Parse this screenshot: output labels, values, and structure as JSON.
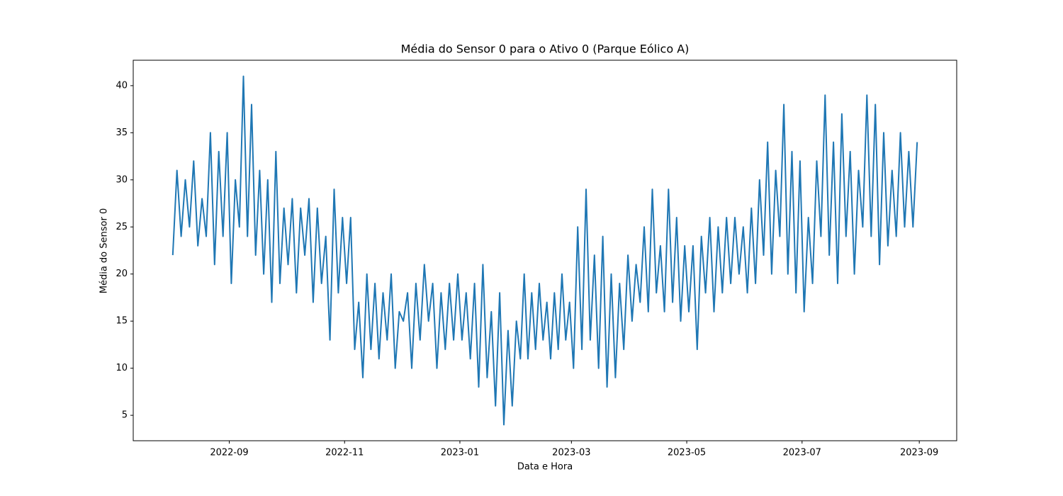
{
  "chart_data": {
    "type": "line",
    "title": "Média do Sensor 0 para o Ativo 0 (Parque Eólico A)",
    "xlabel": "Data e Hora",
    "ylabel": "Média do Sensor 0",
    "color": "#1f77b4",
    "x": [
      "2022-08",
      "2022-08",
      "2022-08",
      "2022-08",
      "2022-08",
      "2022-08",
      "2022-08",
      "2022-08",
      "2022-08",
      "2022-08",
      "2022-08",
      "2022-08",
      "2022-08",
      "2022-08",
      "2022-09",
      "2022-09",
      "2022-09",
      "2022-09",
      "2022-09",
      "2022-09",
      "2022-09",
      "2022-09",
      "2022-09",
      "2022-09",
      "2022-09",
      "2022-09",
      "2022-09",
      "2022-09",
      "2022-10",
      "2022-10",
      "2022-10",
      "2022-10",
      "2022-10",
      "2022-10",
      "2022-10",
      "2022-10",
      "2022-10",
      "2022-10",
      "2022-10",
      "2022-10",
      "2022-10",
      "2022-10",
      "2022-11",
      "2022-11",
      "2022-11",
      "2022-11",
      "2022-11",
      "2022-11",
      "2022-11",
      "2022-11",
      "2022-11",
      "2022-11",
      "2022-11",
      "2022-11",
      "2022-11",
      "2022-11",
      "2022-12",
      "2022-12",
      "2022-12",
      "2022-12",
      "2022-12",
      "2022-12",
      "2022-12",
      "2022-12",
      "2022-12",
      "2022-12",
      "2022-12",
      "2022-12",
      "2022-12",
      "2022-12",
      "2023-01",
      "2023-01",
      "2023-01",
      "2023-01",
      "2023-01",
      "2023-01",
      "2023-01",
      "2023-01",
      "2023-01",
      "2023-01",
      "2023-01",
      "2023-01",
      "2023-01",
      "2023-01",
      "2023-02",
      "2023-02",
      "2023-02",
      "2023-02",
      "2023-02",
      "2023-02",
      "2023-02",
      "2023-02",
      "2023-02",
      "2023-02",
      "2023-02",
      "2023-02",
      "2023-02",
      "2023-02",
      "2023-03",
      "2023-03",
      "2023-03",
      "2023-03",
      "2023-03",
      "2023-03",
      "2023-03",
      "2023-03",
      "2023-03",
      "2023-03",
      "2023-03",
      "2023-03",
      "2023-03",
      "2023-03",
      "2023-04",
      "2023-04",
      "2023-04",
      "2023-04",
      "2023-04",
      "2023-04",
      "2023-04",
      "2023-04",
      "2023-04",
      "2023-04",
      "2023-04",
      "2023-04",
      "2023-04",
      "2023-04",
      "2023-05",
      "2023-05",
      "2023-05",
      "2023-05",
      "2023-05",
      "2023-05",
      "2023-05",
      "2023-05",
      "2023-05",
      "2023-05",
      "2023-05",
      "2023-05",
      "2023-05",
      "2023-05",
      "2023-06",
      "2023-06",
      "2023-06",
      "2023-06",
      "2023-06",
      "2023-06",
      "2023-06",
      "2023-06",
      "2023-06",
      "2023-06",
      "2023-06",
      "2023-06",
      "2023-06",
      "2023-06",
      "2023-07",
      "2023-07",
      "2023-07",
      "2023-07",
      "2023-07",
      "2023-07",
      "2023-07",
      "2023-07",
      "2023-07",
      "2023-07",
      "2023-07",
      "2023-07",
      "2023-07",
      "2023-07",
      "2023-08",
      "2023-08",
      "2023-08",
      "2023-08",
      "2023-08",
      "2023-08",
      "2023-08",
      "2023-08",
      "2023-08",
      "2023-08",
      "2023-08",
      "2023-08",
      "2023-08",
      "2023-08"
    ],
    "values": [
      22,
      31,
      24,
      30,
      25,
      32,
      23,
      28,
      24,
      35,
      21,
      33,
      24,
      35,
      19,
      30,
      25,
      41,
      24,
      38,
      22,
      31,
      20,
      30,
      17,
      33,
      19,
      27,
      21,
      28,
      18,
      27,
      22,
      28,
      17,
      27,
      19,
      24,
      13,
      29,
      18,
      26,
      19,
      26,
      12,
      17,
      9,
      20,
      12,
      19,
      11,
      18,
      13,
      20,
      10,
      16,
      15,
      18,
      10,
      19,
      13,
      21,
      15,
      19,
      10,
      18,
      12,
      19,
      13,
      20,
      13,
      18,
      11,
      19,
      8,
      21,
      9,
      16,
      6,
      18,
      4,
      14,
      6,
      15,
      11,
      20,
      11,
      18,
      12,
      19,
      13,
      17,
      11,
      18,
      12,
      20,
      13,
      17,
      10,
      25,
      12,
      29,
      13,
      22,
      10,
      24,
      8,
      20,
      9,
      19,
      12,
      22,
      15,
      21,
      17,
      25,
      16,
      29,
      18,
      23,
      16,
      29,
      17,
      26,
      15,
      23,
      16,
      23,
      12,
      24,
      18,
      26,
      16,
      25,
      18,
      26,
      19,
      26,
      20,
      25,
      18,
      27,
      19,
      30,
      22,
      34,
      20,
      31,
      24,
      38,
      20,
      33,
      18,
      32,
      16,
      26,
      19,
      32,
      24,
      39,
      22,
      34,
      19,
      37,
      24,
      33,
      20,
      31,
      25,
      39,
      24,
      38,
      21,
      35,
      23,
      31,
      24,
      35,
      25,
      33,
      25,
      34
    ],
    "xticks": [
      "2022-09",
      "2022-11",
      "2023-01",
      "2023-03",
      "2023-05",
      "2023-07",
      "2023-09"
    ],
    "ylim": [
      2.3,
      42.7
    ],
    "yticks": [
      5,
      10,
      15,
      20,
      25,
      30,
      35,
      40
    ],
    "grid": false
  }
}
